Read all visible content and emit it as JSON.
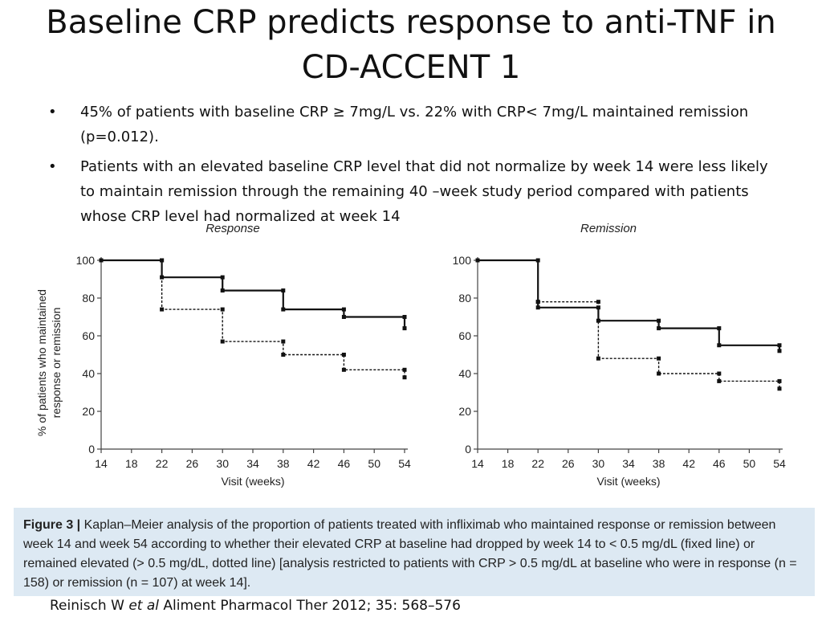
{
  "slide": {
    "title": "Baseline CRP predicts response to anti-TNF in CD-ACCENT 1",
    "bullets": [
      {
        "marker": "•",
        "text": "45% of patients with baseline CRP ≥ 7mg/L vs. 22% with CRP< 7mg/L maintained remission (p=0.012)."
      },
      {
        "marker": "•",
        "text": "Patients with an elevated baseline CRP level that did not normalize by week 14 were less likely to maintain remission through the remaining 40 –week study period compared with patients whose CRP level had normalized at week 14"
      }
    ],
    "caption": {
      "label": "Figure 3 |",
      "text": "Kaplan–Meier analysis of the proportion of patients treated with infliximab who maintained response or remission between week 14 and week 54 according to whether their elevated CRP at baseline had dropped by week 14 to < 0.5 mg/dL (fixed line) or remained elevated (> 0.5 mg/dL, dotted line) [analysis restricted to patients with CRP > 0.5 mg/dL at baseline who were in response (n = 158) or remission (n = 107) at week 14]."
    },
    "reference": {
      "author": "Reinisch W ",
      "etal": "et al",
      "journal": " Aliment Pharmacol Ther 2012; 35: 568–576"
    }
  },
  "chart_data": [
    {
      "type": "line",
      "title": "Response",
      "xlabel": "Visit (weeks)",
      "ylabel": "% of patients who maintained response or remission",
      "xlim": [
        14,
        54
      ],
      "ylim": [
        0,
        100
      ],
      "xticks": [
        14,
        18,
        22,
        26,
        30,
        34,
        38,
        42,
        46,
        50,
        54
      ],
      "yticks": [
        0,
        20,
        40,
        60,
        80,
        100
      ],
      "series": [
        {
          "style": "solid",
          "x": [
            14,
            22,
            22,
            30,
            30,
            38,
            38,
            46,
            46,
            54,
            54
          ],
          "y": [
            100,
            100,
            91,
            91,
            84,
            84,
            74,
            74,
            70,
            70,
            64
          ]
        },
        {
          "style": "dotted",
          "x": [
            22,
            22,
            30,
            30,
            38,
            38,
            46,
            46,
            54,
            54
          ],
          "y": [
            100,
            74,
            74,
            57,
            57,
            50,
            50,
            42,
            42,
            38
          ]
        }
      ]
    },
    {
      "type": "line",
      "title": "Remission",
      "xlabel": "Visit (weeks)",
      "ylabel": "",
      "xlim": [
        14,
        54
      ],
      "ylim": [
        0,
        100
      ],
      "xticks": [
        14,
        18,
        22,
        26,
        30,
        34,
        38,
        42,
        46,
        50,
        54
      ],
      "yticks": [
        0,
        20,
        40,
        60,
        80,
        100
      ],
      "series": [
        {
          "style": "solid",
          "x": [
            14,
            22,
            22,
            30,
            30,
            38,
            38,
            46,
            46,
            54,
            54
          ],
          "y": [
            100,
            100,
            75,
            75,
            68,
            68,
            64,
            64,
            55,
            55,
            52
          ]
        },
        {
          "style": "dotted",
          "x": [
            22,
            22,
            30,
            30,
            38,
            38,
            46,
            46,
            54,
            54
          ],
          "y": [
            78,
            78,
            78,
            48,
            48,
            40,
            40,
            36,
            36,
            32
          ]
        }
      ]
    }
  ]
}
